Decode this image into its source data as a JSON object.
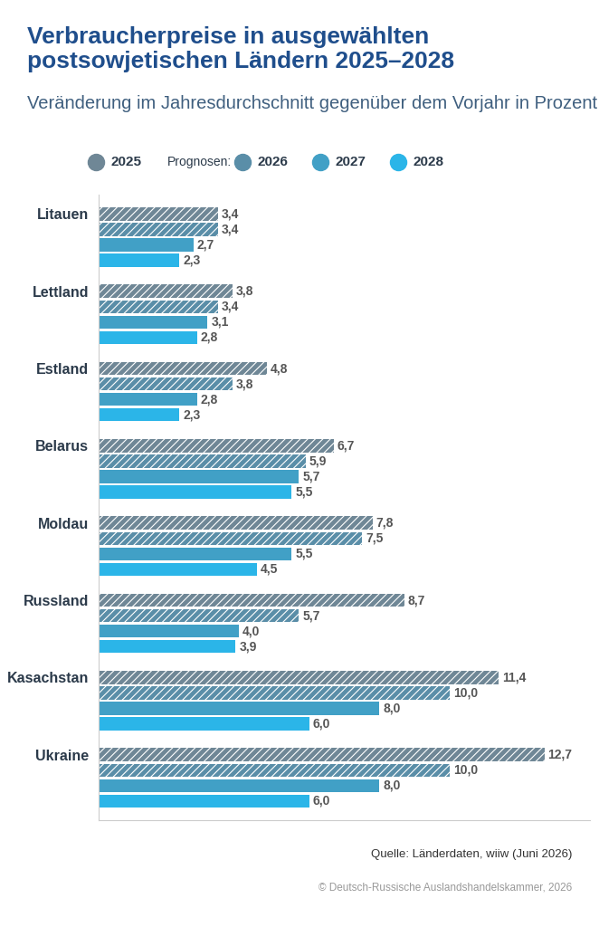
{
  "chart_data": {
    "type": "bar",
    "orientation": "horizontal",
    "title": "Verbraucherpreise in ausgewählten postsowjetischen Ländern 2025–2028",
    "subtitle": "Veränderung im Jahresdurchschnitt gegenüber dem Vorjahr in Prozent",
    "categories": [
      "Litauen",
      "Lettland",
      "Estland",
      "Belarus",
      "Moldau",
      "Russland",
      "Kasachstan",
      "Ukraine"
    ],
    "series": [
      {
        "name": "2025",
        "color": "#6f8796",
        "values": [
          3.4,
          3.8,
          4.8,
          6.7,
          7.8,
          8.7,
          11.4,
          12.7
        ],
        "value_labels": [
          "3,4",
          "3,8",
          "4,8",
          "6,7",
          "7,8",
          "8,7",
          "11,4",
          "12,7"
        ]
      },
      {
        "name": "2026",
        "color": "#5a8ea8",
        "values": [
          3.4,
          3.4,
          3.8,
          5.9,
          7.5,
          5.7,
          10.0,
          10.0
        ],
        "value_labels": [
          "3,4",
          "3,4",
          "3,8",
          "5,9",
          "7,5",
          "5,7",
          "10,0",
          "10,0"
        ]
      },
      {
        "name": "2027",
        "color": "#41a0c6",
        "values": [
          2.7,
          3.1,
          2.8,
          5.7,
          5.5,
          4.0,
          8.0,
          8.0
        ],
        "value_labels": [
          "2,7",
          "3,1",
          "2,8",
          "5,7",
          "5,5",
          "4,0",
          "8,0",
          "8,0"
        ]
      },
      {
        "name": "2028",
        "color": "#2bb5e8",
        "values": [
          2.3,
          2.8,
          2.3,
          5.5,
          4.5,
          3.9,
          6.0,
          6.0
        ],
        "value_labels": [
          "2,3",
          "2,8",
          "2,3",
          "5,5",
          "4,5",
          "3,9",
          "6,0",
          "6,0"
        ]
      }
    ],
    "xlim": [
      0,
      14
    ],
    "data_labels": true,
    "tick_labels": "y",
    "legend": "upper left",
    "annotations": [
      "Prognosen:"
    ],
    "source": "Quelle: Länderdaten, wiiw (Juni 2026)",
    "copyright": "© Deutsch-Russische Auslandshandelskammer, 2026"
  }
}
